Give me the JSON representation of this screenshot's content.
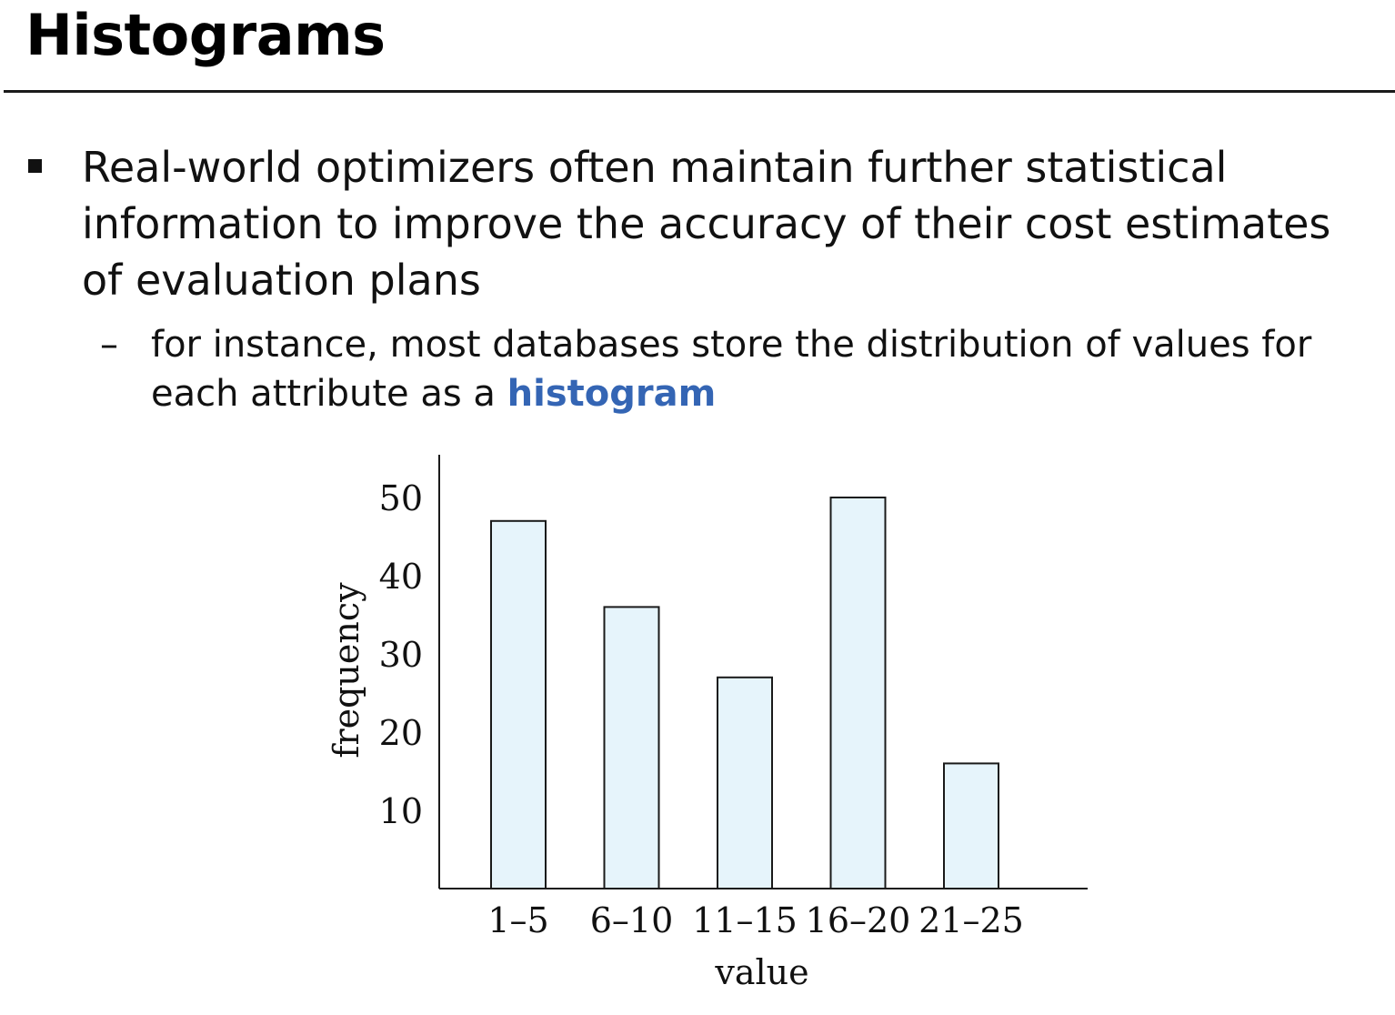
{
  "slide": {
    "title": "Histograms",
    "bullet_1": "Real-world optimizers often maintain further statistical information to improve the accuracy of their cost estimates of evaluation plans",
    "bullet_2_prefix": "for instance, most databases store the distribution of values for each attribute as a ",
    "bullet_2_highlight": "histogram",
    "bullet_2_marker": "–"
  },
  "colors": {
    "highlight": "#3465b4",
    "bar_fill": "#e6f4fb",
    "bar_stroke": "#1a1a1a",
    "axis": "#1a1a1a"
  },
  "chart_data": {
    "type": "bar",
    "categories": [
      "1–5",
      "6–10",
      "11–15",
      "16–20",
      "21–25"
    ],
    "values": [
      47,
      36,
      27,
      50,
      16
    ],
    "xlabel": "value",
    "ylabel": "frequency",
    "ylim": [
      0,
      55
    ],
    "yticks": [
      10,
      20,
      30,
      40,
      50
    ],
    "grid": false,
    "legend": "none"
  }
}
